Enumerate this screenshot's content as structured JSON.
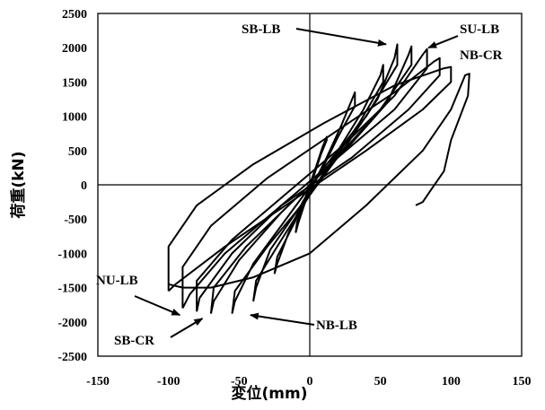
{
  "chart_data": {
    "type": "line",
    "title": "",
    "xlabel": "変位(mm)",
    "ylabel": "荷重(kN)",
    "xlim": [
      -150,
      150
    ],
    "ylim": [
      -2500,
      2500
    ],
    "xticks": [
      -150,
      -100,
      -50,
      0,
      50,
      100,
      150
    ],
    "yticks": [
      -2500,
      -2000,
      -1500,
      -1000,
      -500,
      0,
      500,
      1000,
      1500,
      2000,
      2500
    ],
    "grid": false,
    "legend": "none",
    "series_color": "#000000",
    "series": [
      {
        "x": [
          -100,
          -100,
          -80,
          -40,
          10,
          60,
          95,
          100,
          100,
          80,
          40,
          -10,
          -60,
          -95,
          -100
        ],
        "y": [
          -1550,
          -900,
          -300,
          300,
          900,
          1450,
          1700,
          1720,
          1500,
          1100,
          500,
          -200,
          -900,
          -1450,
          -1550
        ]
      },
      {
        "x": [
          -90,
          -90,
          -70,
          -30,
          20,
          60,
          88,
          92,
          92,
          70,
          30,
          -20,
          -60,
          -85,
          -90
        ],
        "y": [
          -1800,
          -1200,
          -600,
          100,
          800,
          1350,
          1800,
          1850,
          1600,
          1100,
          400,
          -300,
          -1000,
          -1600,
          -1800
        ]
      },
      {
        "x": [
          -80,
          -80,
          -55,
          -15,
          25,
          60,
          80,
          83,
          83,
          60,
          20,
          -20,
          -55,
          -78,
          -80
        ],
        "y": [
          -1850,
          -1400,
          -800,
          -100,
          600,
          1300,
          1900,
          1980,
          1700,
          1100,
          400,
          -300,
          -1000,
          -1650,
          -1850
        ]
      },
      {
        "x": [
          -70,
          -68,
          -45,
          -10,
          25,
          55,
          70,
          72,
          72,
          50,
          15,
          -20,
          -50,
          -68,
          -70
        ],
        "y": [
          -1880,
          -1500,
          -900,
          -200,
          500,
          1200,
          1900,
          2020,
          1750,
          1100,
          300,
          -400,
          -1100,
          -1700,
          -1880
        ]
      },
      {
        "x": [
          -55,
          -53,
          -30,
          0,
          25,
          48,
          60,
          62,
          62,
          40,
          10,
          -15,
          -40,
          -53,
          -55
        ],
        "y": [
          -1880,
          -1550,
          -900,
          -150,
          550,
          1250,
          1850,
          2050,
          1750,
          1000,
          250,
          -450,
          -1150,
          -1700,
          -1880
        ]
      },
      {
        "x": [
          -40,
          -38,
          -20,
          0,
          20,
          38,
          50,
          52,
          52,
          35,
          15,
          -8,
          -28,
          -38,
          -40
        ],
        "y": [
          -1700,
          -1400,
          -800,
          -150,
          500,
          1100,
          1600,
          1750,
          1500,
          900,
          300,
          -350,
          -950,
          -1500,
          -1700
        ]
      },
      {
        "x": [
          -25,
          -23,
          -12,
          0,
          12,
          22,
          30,
          32,
          32,
          20,
          8,
          -5,
          -15,
          -23,
          -25
        ],
        "y": [
          -1300,
          -1050,
          -600,
          -100,
          400,
          850,
          1250,
          1350,
          1150,
          700,
          200,
          -250,
          -700,
          -1150,
          -1300
        ]
      },
      {
        "x": [
          -10,
          -9,
          -5,
          0,
          5,
          9,
          12,
          12,
          8,
          4,
          0,
          -4,
          -8,
          -10
        ],
        "y": [
          -700,
          -550,
          -300,
          0,
          300,
          550,
          700,
          650,
          450,
          200,
          -50,
          -300,
          -550,
          -700
        ]
      },
      {
        "x": [
          -100,
          -90,
          -70,
          -40,
          0,
          40,
          80,
          100,
          110,
          113,
          112,
          100,
          95,
          85,
          80,
          75
        ],
        "y": [
          -1450,
          -1500,
          -1500,
          -1350,
          -1000,
          -300,
          500,
          1100,
          1600,
          1620,
          1300,
          650,
          200,
          -100,
          -250,
          -300
        ]
      }
    ],
    "annotations": [
      {
        "label": "SB-LB",
        "x": 54,
        "y": 2050
      },
      {
        "label": "SU-LB",
        "x": 84,
        "y": 2000
      },
      {
        "label": "NB-CR",
        "x": 98,
        "y": 1600
      },
      {
        "label": "NU-LB",
        "x": -92,
        "y": -1900
      },
      {
        "label": "SB-CR",
        "x": -76,
        "y": -1950
      },
      {
        "label": "NB-LB",
        "x": -42,
        "y": -1900
      }
    ]
  }
}
